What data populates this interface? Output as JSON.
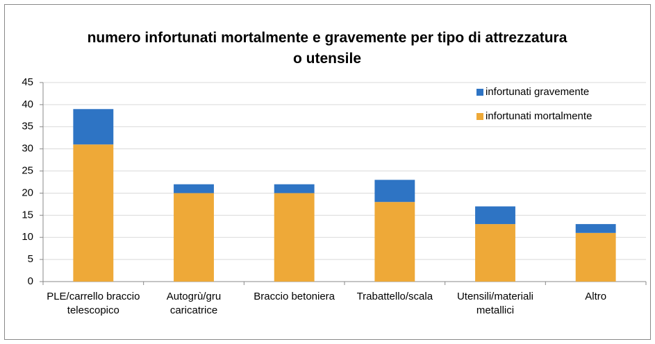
{
  "chart_data": {
    "type": "stacked_bar",
    "title": "numero infortunati mortalmente e gravemente per tipo di attrezzatura o utensile",
    "categories": [
      "PLE/carrello braccio telescopico",
      "Autogrù/gru caricatrice",
      "Braccio betoniera",
      "Trabattello/scala",
      "Utensili/materiali metallici",
      "Altro"
    ],
    "series": [
      {
        "name": "infortunati mortalmente",
        "color": "#eea938",
        "values": [
          31,
          20,
          20,
          18,
          13,
          11
        ]
      },
      {
        "name": "infortunati gravemente",
        "color": "#2e74c4",
        "values": [
          8,
          2,
          2,
          5,
          4,
          2
        ]
      }
    ],
    "ylim": [
      0,
      45
    ],
    "yticks": [
      0,
      5,
      10,
      15,
      20,
      25,
      30,
      35,
      40,
      45
    ],
    "grid": true,
    "legend": "top-right"
  }
}
